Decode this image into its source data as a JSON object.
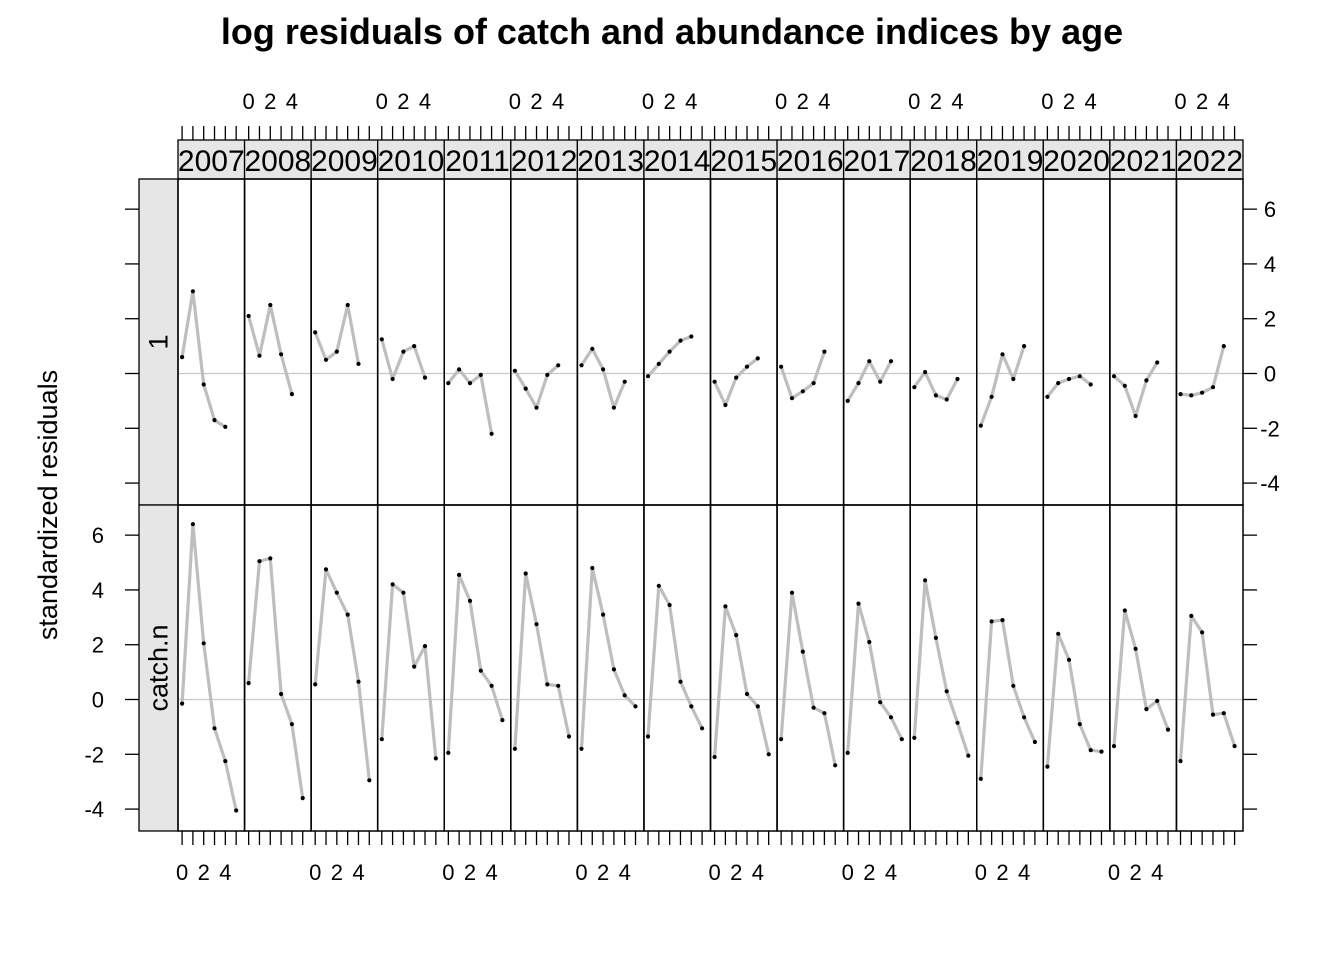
{
  "title": "log residuals of catch and abundance indices by age",
  "chart_data": {
    "type": "line",
    "title": "log residuals of catch and abundance indices by age",
    "ylabel": "standardized residuals",
    "xlabel": "",
    "x_ticks": [
      "0",
      "2",
      "4"
    ],
    "y_ticks": [
      "-4",
      "-2",
      "0",
      "2",
      "4",
      "6"
    ],
    "ylim": [
      -4.8,
      7.1
    ],
    "reference_line": 0,
    "grid": false,
    "years": [
      "2007",
      "2008",
      "2009",
      "2010",
      "2011",
      "2012",
      "2013",
      "2014",
      "2015",
      "2016",
      "2017",
      "2018",
      "2019",
      "2020",
      "2021",
      "2022"
    ],
    "rows": [
      {
        "label": "1",
        "ages": [
          0,
          1,
          2,
          3,
          4
        ],
        "values": [
          [
            0.6,
            3.0,
            -0.4,
            -1.7,
            -1.95
          ],
          [
            2.1,
            0.65,
            2.5,
            0.7,
            -0.75
          ],
          [
            1.5,
            0.5,
            0.8,
            2.5,
            0.35
          ],
          [
            1.25,
            -0.2,
            0.8,
            1.0,
            -0.15
          ],
          [
            -0.35,
            0.15,
            -0.35,
            -0.05,
            -2.2
          ],
          [
            0.1,
            -0.55,
            -1.25,
            -0.05,
            0.3
          ],
          [
            0.3,
            0.9,
            0.15,
            -1.25,
            -0.3
          ],
          [
            -0.1,
            0.35,
            0.8,
            1.2,
            1.35
          ],
          [
            -0.3,
            -1.15,
            -0.15,
            0.25,
            0.55
          ],
          [
            0.25,
            -0.9,
            -0.65,
            -0.35,
            0.8
          ],
          [
            -1.0,
            -0.35,
            0.45,
            -0.3,
            0.45
          ],
          [
            -0.5,
            0.05,
            -0.8,
            -0.95,
            -0.2
          ],
          [
            -1.9,
            -0.85,
            0.7,
            -0.2,
            1.0
          ],
          [
            -0.85,
            -0.35,
            -0.2,
            -0.1,
            -0.4
          ],
          [
            -0.1,
            -0.45,
            -1.55,
            -0.25,
            0.4
          ],
          [
            -0.75,
            -0.8,
            -0.7,
            -0.5,
            1.0
          ]
        ]
      },
      {
        "label": "catch.n",
        "ages": [
          0,
          1,
          2,
          3,
          4,
          5
        ],
        "values": [
          [
            -0.15,
            6.4,
            2.05,
            -1.05,
            -2.25,
            -4.05
          ],
          [
            0.6,
            5.05,
            5.15,
            0.2,
            -0.9,
            -3.6
          ],
          [
            0.55,
            4.75,
            3.9,
            3.1,
            0.65,
            -2.95
          ],
          [
            -1.45,
            4.2,
            3.9,
            1.2,
            1.95,
            -2.15
          ],
          [
            -1.95,
            4.55,
            3.6,
            1.05,
            0.5,
            -0.75
          ],
          [
            -1.8,
            4.6,
            2.75,
            0.55,
            0.5,
            -1.35
          ],
          [
            -1.8,
            4.8,
            3.1,
            1.1,
            0.15,
            -0.25
          ],
          [
            -1.35,
            4.15,
            3.45,
            0.65,
            -0.25,
            -1.05
          ],
          [
            -2.1,
            3.4,
            2.35,
            0.2,
            -0.25,
            -2.0
          ],
          [
            -1.45,
            3.9,
            1.75,
            -0.3,
            -0.5,
            -2.4
          ],
          [
            -1.95,
            3.5,
            2.1,
            -0.1,
            -0.65,
            -1.45
          ],
          [
            -1.4,
            4.35,
            2.25,
            0.3,
            -0.85,
            -2.05
          ],
          [
            -2.9,
            2.85,
            2.9,
            0.5,
            -0.65,
            -1.55
          ],
          [
            -2.45,
            2.4,
            1.45,
            -0.9,
            -1.85,
            -1.9
          ],
          [
            -1.7,
            3.25,
            1.85,
            -0.35,
            -0.05,
            -1.1
          ],
          [
            -2.25,
            3.05,
            2.45,
            -0.55,
            -0.5,
            -1.7
          ]
        ]
      }
    ]
  }
}
